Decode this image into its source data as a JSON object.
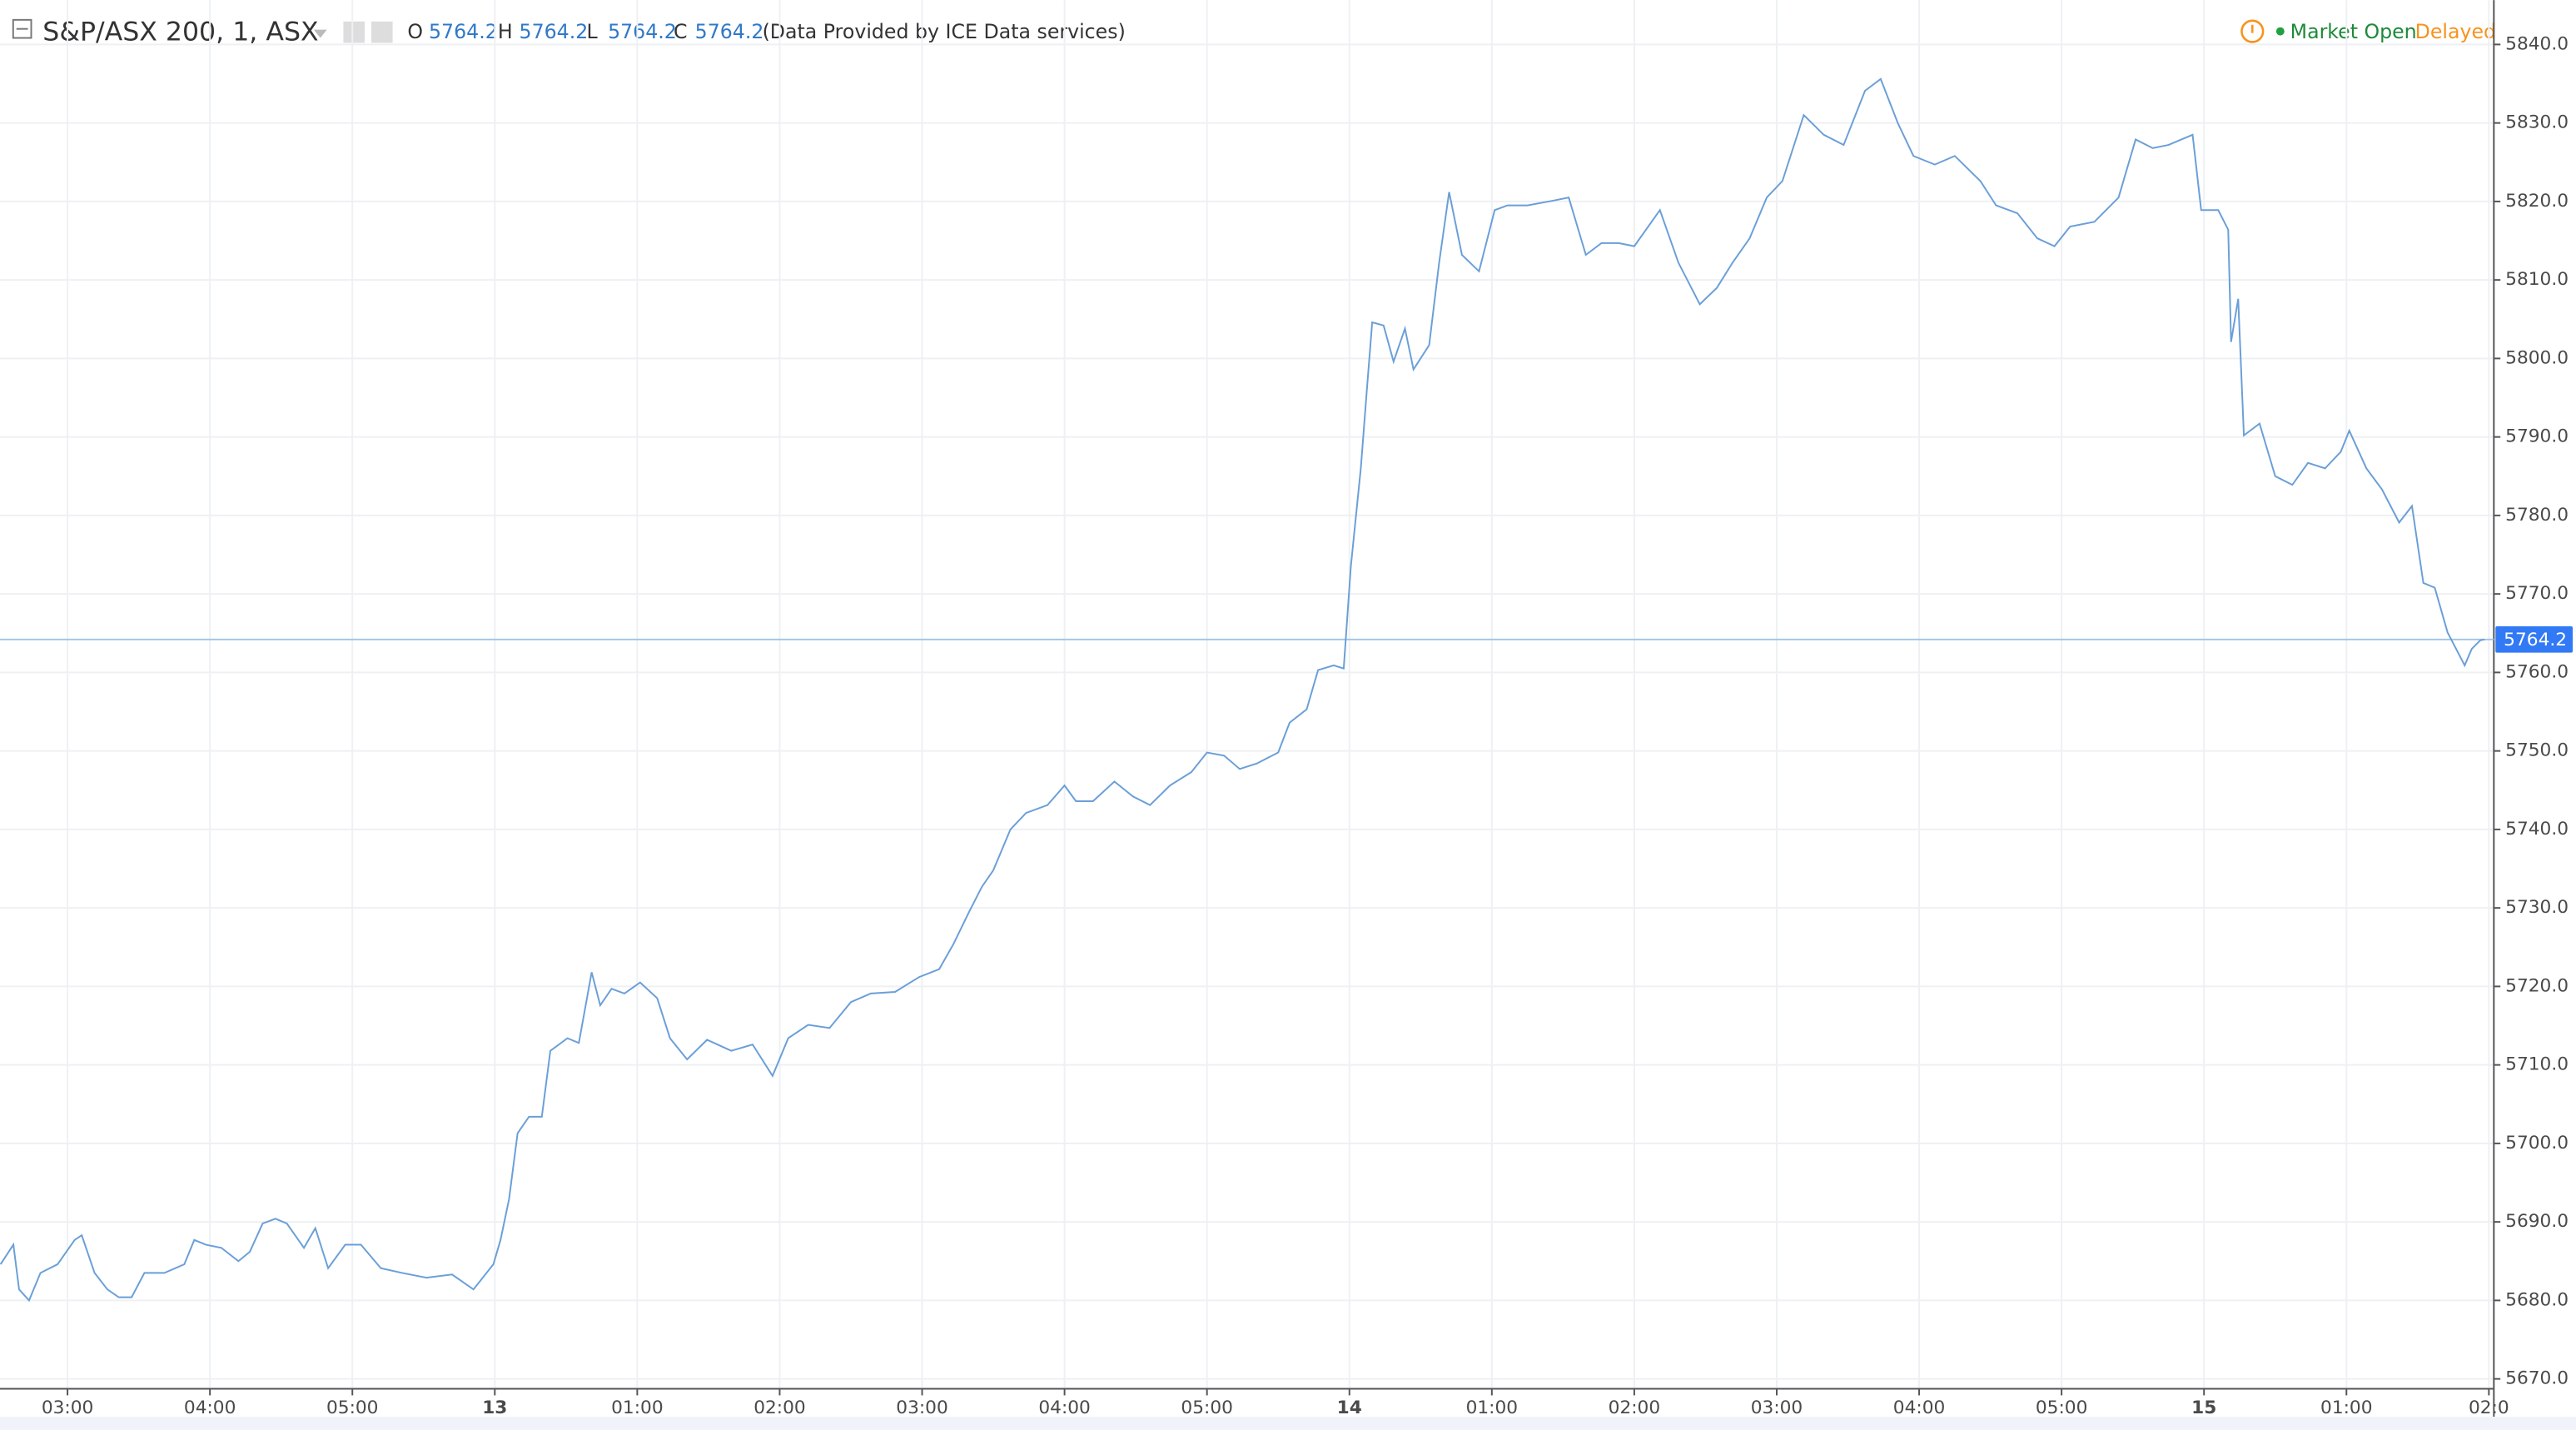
{
  "chart_data": {
    "type": "line",
    "title": "S&P/ASX 200, 1, ASX",
    "ohlc": [
      {
        "label": "O",
        "value": 5764.2
      },
      {
        "label": "H",
        "value": 5764.2
      },
      {
        "label": "L",
        "value": 5764.2
      },
      {
        "label": "C",
        "value": 5764.2
      }
    ],
    "source_note": "(Data Provided by ICE Data services)",
    "status": "Market Open",
    "delay": "Delayed",
    "last_price": 5764.2,
    "color": "#6a9fd8",
    "x": [
      2.53,
      2.62,
      2.66,
      2.73,
      2.81,
      2.93,
      3.05,
      3.1,
      3.19,
      3.28,
      3.36,
      3.45,
      3.54,
      3.68,
      3.82,
      3.89,
      3.97,
      4.08,
      4.2,
      4.28,
      4.37,
      4.46,
      4.54,
      4.66,
      4.74,
      4.83,
      4.95,
      5.06,
      5.2,
      5.35,
      5.52,
      5.7,
      5.85,
      5.99,
      6.04,
      6.1,
      6.16,
      6.24,
      6.33,
      6.39,
      6.51,
      6.59,
      6.68,
      6.74,
      6.82,
      6.91,
      7.02,
      7.14,
      7.23,
      7.35,
      7.49,
      7.66,
      7.81,
      7.95,
      8.06,
      8.2,
      8.35,
      8.5,
      8.64,
      8.81,
      8.98,
      9.12,
      9.22,
      9.33,
      9.42,
      9.5,
      9.62,
      9.73,
      9.88,
      10.0,
      10.08,
      10.2,
      10.35,
      10.48,
      10.6,
      10.74,
      10.89,
      11.0,
      11.12,
      11.23,
      11.35,
      11.5,
      11.58,
      11.7,
      11.78,
      11.89,
      11.96,
      12.01,
      12.08,
      12.12,
      12.16,
      12.24,
      12.31,
      12.39,
      12.45,
      12.56,
      12.63,
      12.7,
      12.79,
      12.91,
      13.02,
      13.11,
      13.25,
      13.43,
      13.54,
      13.66,
      13.77,
      13.89,
      14.0,
      14.18,
      14.31,
      14.46,
      14.58,
      14.69,
      14.81,
      14.93,
      15.04,
      15.19,
      15.33,
      15.47,
      15.62,
      15.73,
      15.85,
      15.96,
      16.11,
      16.25,
      16.43,
      16.54,
      16.69,
      16.83,
      16.95,
      17.06,
      17.23,
      17.4,
      17.52,
      17.64,
      17.75,
      17.92,
      17.98,
      18.1,
      18.17,
      18.19,
      18.24,
      18.28,
      18.39,
      18.5,
      18.62,
      18.73,
      18.85,
      18.96,
      19.02,
      19.14,
      19.25,
      19.37,
      19.46,
      19.54,
      19.62,
      19.71,
      19.83,
      19.88,
      19.94,
      19.97
    ],
    "values": [
      5684.6,
      5687.1,
      5681.4,
      5680.0,
      5683.5,
      5684.6,
      5687.7,
      5688.3,
      5683.5,
      5681.4,
      5680.4,
      5680.4,
      5683.5,
      5683.5,
      5684.6,
      5687.7,
      5687.1,
      5686.7,
      5685.0,
      5686.2,
      5689.8,
      5690.4,
      5689.8,
      5686.7,
      5689.2,
      5684.1,
      5687.1,
      5687.1,
      5684.1,
      5683.5,
      5682.9,
      5683.3,
      5681.4,
      5684.6,
      5687.7,
      5692.9,
      5701.3,
      5703.4,
      5703.4,
      5711.8,
      5713.4,
      5712.8,
      5721.8,
      5717.6,
      5719.7,
      5719.1,
      5720.5,
      5718.5,
      5713.4,
      5710.7,
      5713.2,
      5711.8,
      5712.6,
      5708.6,
      5713.4,
      5715.1,
      5714.7,
      5718.0,
      5719.1,
      5719.3,
      5721.2,
      5722.2,
      5725.4,
      5729.5,
      5732.7,
      5734.8,
      5740.0,
      5742.1,
      5743.1,
      5745.6,
      5743.6,
      5743.6,
      5746.1,
      5744.2,
      5743.1,
      5745.6,
      5747.3,
      5749.8,
      5749.4,
      5747.7,
      5748.4,
      5749.8,
      5753.6,
      5755.3,
      5760.3,
      5760.9,
      5760.5,
      5773.5,
      5786.0,
      5795.4,
      5804.6,
      5804.2,
      5799.6,
      5803.8,
      5798.6,
      5801.7,
      5812.2,
      5821.2,
      5813.2,
      5811.1,
      5818.9,
      5819.5,
      5819.5,
      5820.1,
      5820.5,
      5813.2,
      5814.7,
      5814.7,
      5814.3,
      5818.9,
      5812.2,
      5806.9,
      5809.0,
      5812.2,
      5815.3,
      5820.5,
      5822.6,
      5831.0,
      5828.5,
      5827.2,
      5834.1,
      5835.6,
      5830.0,
      5825.8,
      5824.7,
      5825.8,
      5822.6,
      5819.5,
      5818.5,
      5815.3,
      5814.3,
      5816.8,
      5817.4,
      5820.5,
      5827.9,
      5826.8,
      5827.2,
      5828.5,
      5818.9,
      5818.9,
      5816.4,
      5802.1,
      5807.6,
      5790.2,
      5791.7,
      5785.0,
      5783.9,
      5786.7,
      5786.0,
      5788.1,
      5790.8,
      5786.0,
      5783.3,
      5779.1,
      5781.2,
      5771.4,
      5770.8,
      5765.1,
      5760.9,
      5763.0,
      5764.1,
      5764.2
    ],
    "xlim": [
      2.526,
      20.035
    ],
    "xticks": [
      {
        "value": 3,
        "label": "03:00"
      },
      {
        "value": 4,
        "label": "04:00"
      },
      {
        "value": 5,
        "label": "05:00"
      },
      {
        "value": 6,
        "label": "13"
      },
      {
        "value": 7,
        "label": "01:00"
      },
      {
        "value": 8,
        "label": "02:00"
      },
      {
        "value": 9,
        "label": "03:00"
      },
      {
        "value": 10,
        "label": "04:00"
      },
      {
        "value": 11,
        "label": "05:00"
      },
      {
        "value": 12,
        "label": "14"
      },
      {
        "value": 13,
        "label": "01:00"
      },
      {
        "value": 14,
        "label": "02:00"
      },
      {
        "value": 15,
        "label": "03:00"
      },
      {
        "value": 16,
        "label": "04:00"
      },
      {
        "value": 17,
        "label": "05:00"
      },
      {
        "value": 18,
        "label": "15"
      },
      {
        "value": 19,
        "label": "01:00"
      },
      {
        "value": 20,
        "label": "02:0"
      }
    ],
    "ylim": [
      5668.74,
      5845.65
    ],
    "yticks": [
      {
        "value": 5670,
        "label": "5670.0"
      },
      {
        "value": 5680,
        "label": "5680.0"
      },
      {
        "value": 5690,
        "label": "5690.0"
      },
      {
        "value": 5700,
        "label": "5700.0"
      },
      {
        "value": 5710,
        "label": "5710.0"
      },
      {
        "value": 5720,
        "label": "5720.0"
      },
      {
        "value": 5730,
        "label": "5730.0"
      },
      {
        "value": 5740,
        "label": "5740.0"
      },
      {
        "value": 5750,
        "label": "5750.0"
      },
      {
        "value": 5760,
        "label": "5760.0"
      },
      {
        "value": 5770,
        "label": "5770.0"
      },
      {
        "value": 5780,
        "label": "5780.0"
      },
      {
        "value": 5790,
        "label": "5790.0"
      },
      {
        "value": 5800,
        "label": "5800.0"
      },
      {
        "value": 5810,
        "label": "5810.0"
      },
      {
        "value": 5820,
        "label": "5820.0"
      },
      {
        "value": 5830,
        "label": "5830.0"
      },
      {
        "value": 5840,
        "label": "5840.0"
      }
    ],
    "grid": true
  }
}
